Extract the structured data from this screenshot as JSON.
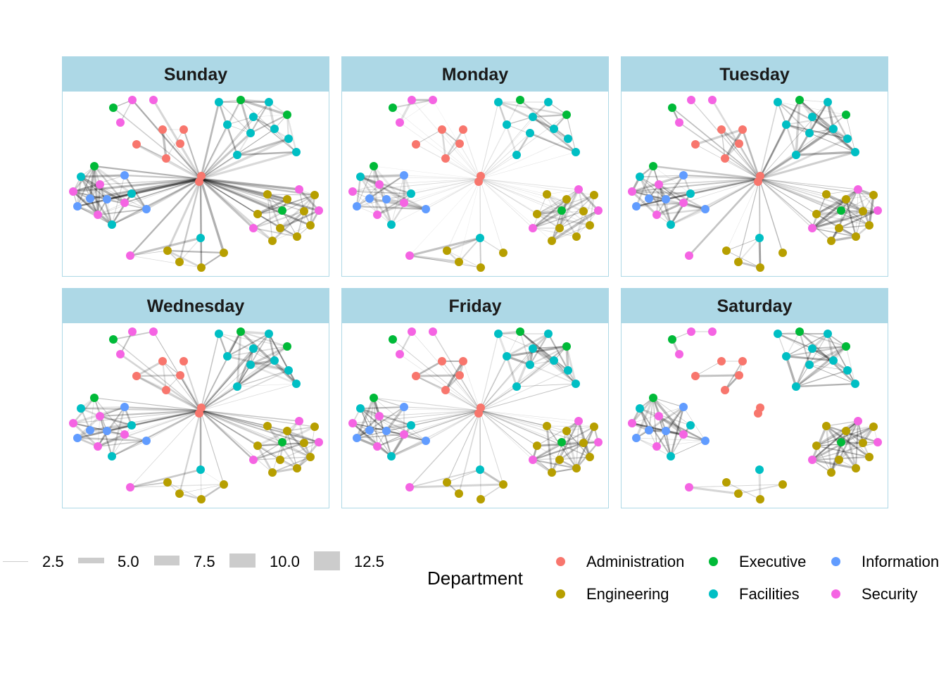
{
  "panels": [
    {
      "label": "Sunday"
    },
    {
      "label": "Monday"
    },
    {
      "label": "Tuesday"
    },
    {
      "label": "Wednesday"
    },
    {
      "label": "Friday"
    },
    {
      "label": "Saturday"
    }
  ],
  "width_legend": {
    "labels": [
      "2.5",
      "5.0",
      "7.5",
      "10.0",
      "12.5"
    ]
  },
  "department_legend": {
    "title": "Department",
    "items": [
      {
        "label": "Administration",
        "color": "#F8766D"
      },
      {
        "label": "Engineering",
        "color": "#B79F00"
      },
      {
        "label": "Executive",
        "color": "#00BA38"
      },
      {
        "label": "Facilities",
        "color": "#00BFC4"
      },
      {
        "label": "Information",
        "color": "#619CFF"
      },
      {
        "label": "Security",
        "color": "#F564E3"
      }
    ]
  },
  "edge_color": "#000000"
}
